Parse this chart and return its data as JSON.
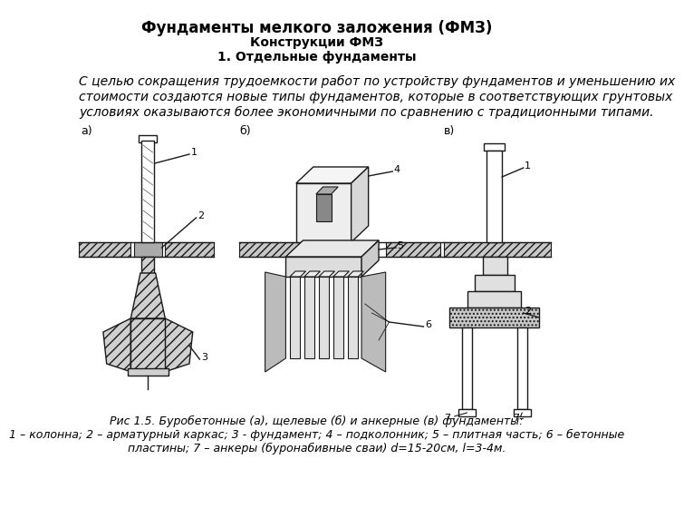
{
  "title_line1": "Фундаменты мелкого заложения (ФМЗ)",
  "title_line2": "Конструкции ФМЗ",
  "title_line3": "1. Отдельные фундаменты",
  "body_text": "С целью сокращения трудоемкости работ по устройству фундаментов и уменьшению их стоимости создаются новые типы фундаментов, которые в соответствующих грунтовых условиях оказываются более экономичными по сравнению с традиционными типами.",
  "caption_line1": "Рис 1.5. Буробетонные (а), щелевые (б) и анкерные (в) фундаменты:",
  "caption_line2": "1 – колонна; 2 – арматурный каркас; 3 - фундамент; 4 – подколонник; 5 – плитная часть; 6 – бетонные",
  "caption_line3": "пластины; 7 – анкеры (буронабивные сваи) d=15-20см, l=3-4м.",
  "bg_color": "#ffffff",
  "title_fontsize": 12,
  "subtitle_fontsize": 10,
  "body_fontsize": 10,
  "caption_fontsize": 9
}
